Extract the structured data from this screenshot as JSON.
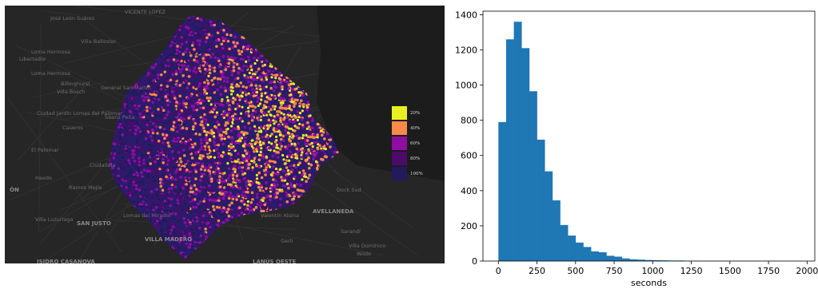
{
  "map": {
    "place_labels": [
      {
        "text": "José León Suárez",
        "x": 57,
        "y": 13
      },
      {
        "text": "Villa Ballester",
        "x": 95,
        "y": 42
      },
      {
        "text": "Loma Hermosa",
        "x": 33,
        "y": 55
      },
      {
        "text": "Libertador",
        "x": 18,
        "y": 64
      },
      {
        "text": "Loma Hermosa",
        "x": 33,
        "y": 82
      },
      {
        "text": "Billinghurst",
        "x": 70,
        "y": 95
      },
      {
        "text": "Villa Bosch",
        "x": 65,
        "y": 105
      },
      {
        "text": "General San Martín",
        "x": 120,
        "y": 100
      },
      {
        "text": "Ciudad Jardín Lomas del Palomar",
        "x": 40,
        "y": 132
      },
      {
        "text": "Caseros",
        "x": 72,
        "y": 150
      },
      {
        "text": "Sáenz Peña",
        "x": 125,
        "y": 137
      },
      {
        "text": "El Palomar",
        "x": 33,
        "y": 178
      },
      {
        "text": "Ciudadela",
        "x": 106,
        "y": 197
      },
      {
        "text": "Haedo",
        "x": 38,
        "y": 213
      },
      {
        "text": "Ramos Mejía",
        "x": 80,
        "y": 225
      },
      {
        "text": "ÓN",
        "x": 6,
        "y": 228,
        "strong": true
      },
      {
        "text": "Villa Luzuriaga",
        "x": 38,
        "y": 265
      },
      {
        "text": "SAN JUSTO",
        "x": 90,
        "y": 270,
        "strong": true
      },
      {
        "text": "Lomas del Mirador",
        "x": 148,
        "y": 260
      },
      {
        "text": "VILLA MADERO",
        "x": 175,
        "y": 290,
        "strong": true
      },
      {
        "text": "Valentín Alsina",
        "x": 320,
        "y": 260
      },
      {
        "text": "AVELLANEDA",
        "x": 385,
        "y": 255,
        "strong": true
      },
      {
        "text": "Dock Sud",
        "x": 415,
        "y": 228
      },
      {
        "text": "Sarandí",
        "x": 420,
        "y": 280
      },
      {
        "text": "Gerli",
        "x": 345,
        "y": 292
      },
      {
        "text": "Villa Domínico",
        "x": 430,
        "y": 298
      },
      {
        "text": "Wilde",
        "x": 440,
        "y": 308
      },
      {
        "text": "LANÚS OESTE",
        "x": 310,
        "y": 318,
        "strong": true
      },
      {
        "text": "ISIDRO CASANOVA",
        "x": 40,
        "y": 318,
        "strong": true
      },
      {
        "text": "VICENTE LÓPEZ",
        "x": 150,
        "y": 5
      }
    ],
    "legend": [
      {
        "label": "20%",
        "color": "#e8f021"
      },
      {
        "label": "40%",
        "color": "#f7894a"
      },
      {
        "label": "60%",
        "color": "#8f0da3"
      },
      {
        "label": "80%",
        "color": "#4c0a6b"
      },
      {
        "label": "100%",
        "color": "#231a5c"
      }
    ]
  },
  "chart_data": {
    "type": "histogram",
    "xlabel": "seconds",
    "ylabel": "",
    "title": "",
    "bin_width": 50,
    "bin_starts": [
      0,
      50,
      100,
      150,
      200,
      250,
      300,
      350,
      400,
      450,
      500,
      550,
      600,
      650,
      700,
      750,
      800,
      850,
      900,
      950,
      1000,
      1050,
      1100,
      1150,
      1200,
      1250,
      1300,
      1350,
      1400,
      1450,
      1500,
      1550,
      1600,
      1650,
      1700,
      1750,
      1800,
      1850,
      1900,
      1950
    ],
    "values": [
      790,
      1260,
      1360,
      1210,
      965,
      690,
      510,
      345,
      205,
      145,
      105,
      80,
      55,
      50,
      30,
      25,
      15,
      10,
      8,
      6,
      5,
      4,
      3,
      3,
      2,
      2,
      1,
      1,
      1,
      1,
      1,
      1,
      2,
      1,
      1,
      1,
      0,
      0,
      0,
      0
    ],
    "xlim": [
      -100,
      2050
    ],
    "ylim": [
      0,
      1420
    ],
    "xticks": [
      0,
      250,
      500,
      750,
      1000,
      1250,
      1500,
      1750,
      2000
    ],
    "yticks": [
      0,
      200,
      400,
      600,
      800,
      1000,
      1200,
      1400
    ],
    "bar_color": "#1f77b4"
  }
}
